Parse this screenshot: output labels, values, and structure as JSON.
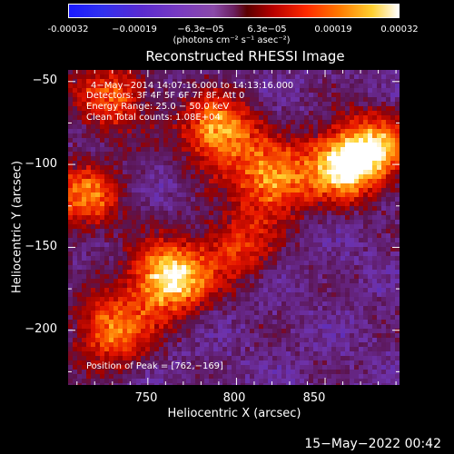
{
  "colorbar": {
    "ticks": [
      "-0.00032",
      "−0.00019",
      "−6.3e−05",
      "6.3e−05",
      "0.00019",
      "0.00032"
    ],
    "unit_label": "(photons cm⁻² s⁻¹ asec⁻²)"
  },
  "chart_data": {
    "type": "heatmap",
    "title": "Reconstructed RHESSI Image",
    "xlabel": "Heliocentric X (arcsec)",
    "ylabel": "Heliocentric Y (arcsec)",
    "xlim": [
      705,
      892
    ],
    "ylim": [
      -233,
      -43
    ],
    "x_ticks": [
      "750",
      "800",
      "850"
    ],
    "y_ticks": [
      "−50",
      "−100",
      "−150",
      "−200"
    ],
    "colorbar_range": [
      -0.00032,
      0.00032
    ],
    "peak_position": [
      762,
      -169
    ],
    "bright_regions": [
      {
        "x": 762,
        "y": -169,
        "intensity": 0.00032
      },
      {
        "x": 790,
        "y": -80,
        "intensity": 0.00026
      },
      {
        "x": 820,
        "y": -110,
        "intensity": 0.00024
      },
      {
        "x": 860,
        "y": -100,
        "intensity": 0.00028
      },
      {
        "x": 880,
        "y": -90,
        "intensity": 0.0002
      },
      {
        "x": 730,
        "y": -200,
        "intensity": 0.00022
      },
      {
        "x": 715,
        "y": -120,
        "intensity": 0.0002
      },
      {
        "x": 800,
        "y": -150,
        "intensity": 0.00016
      },
      {
        "x": 730,
        "y": -60,
        "intensity": 0.00018
      }
    ],
    "annotation_lines": [
      "4−May−2014 14:07:16.000 to 14:13:16.000",
      "Detectors: 3F 4F 5F 6F 7F 8F, Att 0",
      "Energy Range: 25.0 − 50.0 keV",
      "Clean    Total counts: 1.08E+04"
    ],
    "peak_label": "Position of Peak = [762,−169]"
  },
  "footer": {
    "date": "15−May−2022 00:42"
  },
  "colors": {
    "background": "#000000",
    "low": "#1a1aff",
    "mid": "#6a2a9a",
    "high": "#ff6000",
    "peak": "#ffffff"
  }
}
